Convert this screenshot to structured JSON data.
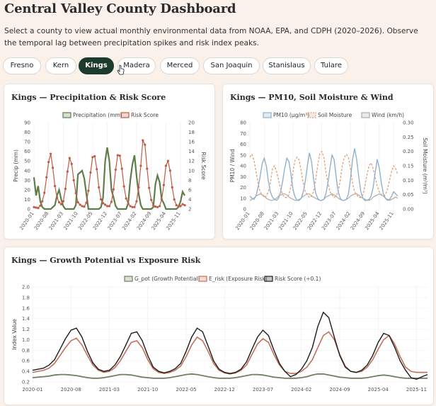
{
  "header": {
    "title": "Central Valley County Dashboard",
    "description": "Select a county to view actual monthly environmental data from NOAA, EPA, and CDPH (2020–2026). Observe the temporal lag between precipitation spikes and risk index peaks."
  },
  "counties": [
    "Fresno",
    "Kern",
    "Kings",
    "Madera",
    "Merced",
    "San Joaquin",
    "Stanislaus",
    "Tulare"
  ],
  "selected_county": "Kings",
  "colors": {
    "precip": "#5e7d4a",
    "risk": "#bf5b45",
    "pm10": "#8fb1cf",
    "soil": "#e2a07a",
    "wind": "#b3aba7",
    "gpot": "#6f7f62",
    "erisk": "#c2705c",
    "riskscore": "#1c1c1c",
    "active_tab": "#1d3b2c",
    "background": "#faf1ea"
  },
  "chart_data": [
    {
      "type": "line",
      "title": "Kings — Precipitation & Risk Score",
      "ylabel": "Precip (mm)",
      "y2label": "Risk Score",
      "ylim": [
        0,
        90
      ],
      "yticks": [
        0,
        10,
        20,
        30,
        40,
        50,
        60,
        70,
        80,
        90
      ],
      "y2lim": [
        2,
        20
      ],
      "y2ticks": [
        2,
        4,
        6,
        8,
        10,
        12,
        14,
        16,
        18,
        20
      ],
      "x_tick_labels": [
        "2020-01",
        "2020-08",
        "2021-03",
        "2021-10",
        "2022-05",
        "2022-12",
        "2023-07",
        "2024-02",
        "2024-09",
        "2025-04",
        "2025-11"
      ],
      "legend": "top",
      "series": [
        {
          "name": "Precipitation (mm)",
          "axis": "left",
          "values": [
            33,
            14,
            24,
            8,
            2,
            0,
            0,
            0,
            0,
            2,
            4,
            14,
            20,
            10,
            3,
            0,
            0,
            0,
            0,
            0,
            4,
            36,
            38,
            40,
            32,
            16,
            0,
            0,
            0,
            0,
            0,
            0,
            2,
            12,
            50,
            64,
            50,
            20,
            12,
            3,
            0,
            0,
            0,
            0,
            0,
            6,
            30,
            46,
            56,
            34,
            16,
            4,
            0,
            0,
            0,
            0,
            0,
            2,
            26,
            35,
            28,
            10,
            6,
            0,
            0,
            0,
            0,
            0,
            0,
            2,
            8,
            18,
            14
          ]
        },
        {
          "name": "Risk Score",
          "axis": "right",
          "values": [
            2.4,
            2.3,
            2.2,
            2.7,
            3.6,
            5.4,
            8.6,
            11.8,
            13.5,
            10.6,
            6.8,
            4.4,
            3.4,
            3.0,
            3.6,
            6.2,
            9.8,
            12.6,
            11.4,
            8.0,
            5.3,
            3.4,
            2.9,
            2.6,
            2.5,
            3.3,
            5.8,
            9.6,
            12.8,
            13.0,
            10.3,
            6.5,
            4.0,
            3.2,
            2.9,
            2.6,
            2.6,
            3.5,
            6.1,
            10.2,
            13.2,
            13.1,
            10.4,
            6.7,
            4.2,
            3.1,
            2.6,
            2.4,
            2.4,
            3.6,
            6.5,
            11.0,
            16.3,
            15.4,
            10.4,
            6.4,
            3.9,
            2.8,
            2.5,
            2.4,
            2.6,
            4.0,
            7.0,
            11.0,
            12.0,
            10.0,
            6.5,
            4.0,
            2.8,
            2.5,
            2.6,
            3.0,
            2.8
          ]
        }
      ]
    },
    {
      "type": "line",
      "title": "Kings — PM10, Soil Moisture & Wind",
      "ylabel": "PM10 / Wind",
      "y2label": "Soil Moisture (m³/m³)",
      "ylim": [
        0,
        80
      ],
      "yticks": [
        0,
        10,
        20,
        30,
        40,
        50,
        60,
        70,
        80
      ],
      "y2lim": [
        0,
        0.3
      ],
      "y2ticks": [
        "0.00",
        "0.05",
        "0.10",
        "0.15",
        "0.20",
        "0.25",
        "0.30"
      ],
      "x_tick_labels": [
        "2020-01",
        "2020-08",
        "2021-03",
        "2021-10",
        "2022-05",
        "2022-12",
        "2023-07",
        "2024-02",
        "2024-09",
        "2025-04",
        "2025-11"
      ],
      "legend": "top",
      "series": [
        {
          "name": "PM10 (µg/m³)",
          "axis": "left",
          "values": [
            12,
            10,
            9,
            12,
            20,
            30,
            42,
            47,
            40,
            26,
            16,
            11,
            9,
            8,
            10,
            16,
            26,
            38,
            47,
            44,
            32,
            18,
            11,
            8,
            8,
            10,
            16,
            26,
            40,
            52,
            44,
            28,
            15,
            10,
            8,
            8,
            9,
            14,
            24,
            38,
            50,
            46,
            30,
            16,
            10,
            8,
            8,
            9,
            14,
            28,
            46,
            56,
            46,
            30,
            16,
            10,
            8,
            8,
            9,
            12,
            20,
            34,
            46,
            38,
            24,
            14,
            10,
            8,
            9,
            12,
            16,
            14,
            12
          ]
        },
        {
          "name": "Soil Moisture",
          "axis": "right",
          "values": [
            0.18,
            0.19,
            0.17,
            0.13,
            0.09,
            0.06,
            0.05,
            0.04,
            0.045,
            0.06,
            0.09,
            0.14,
            0.15,
            0.13,
            0.1,
            0.07,
            0.05,
            0.04,
            0.04,
            0.05,
            0.08,
            0.13,
            0.17,
            0.18,
            0.17,
            0.13,
            0.09,
            0.06,
            0.05,
            0.04,
            0.045,
            0.06,
            0.1,
            0.15,
            0.19,
            0.2,
            0.18,
            0.13,
            0.09,
            0.06,
            0.05,
            0.04,
            0.045,
            0.06,
            0.1,
            0.15,
            0.18,
            0.19,
            0.18,
            0.14,
            0.09,
            0.06,
            0.05,
            0.04,
            0.04,
            0.05,
            0.08,
            0.12,
            0.15,
            0.16,
            0.14,
            0.11,
            0.08,
            0.06,
            0.05,
            0.045,
            0.05,
            0.07,
            0.1,
            0.13,
            0.15,
            0.14,
            0.12
          ]
        },
        {
          "name": "Wind (km/h)",
          "axis": "left",
          "values": [
            8,
            9,
            10,
            12,
            13,
            14,
            13,
            12,
            10,
            9,
            8,
            8,
            9,
            10,
            12,
            13,
            14,
            14,
            13,
            11,
            10,
            9,
            8,
            8,
            9,
            10,
            12,
            13,
            14,
            14,
            12,
            11,
            10,
            9,
            8,
            8,
            9,
            11,
            12,
            13,
            14,
            13,
            12,
            10,
            9,
            8,
            8,
            9,
            10,
            12,
            13,
            14,
            14,
            13,
            11,
            10,
            9,
            8,
            8,
            9,
            11,
            12,
            13,
            14,
            13,
            12,
            10,
            9,
            8,
            9,
            10,
            11,
            10
          ]
        }
      ]
    },
    {
      "type": "line",
      "title": "Kings — Growth Potential vs Exposure Risk",
      "ylabel": "Index Value",
      "ylim": [
        0.2,
        2.0
      ],
      "yticks": [
        "0.2",
        "0.4",
        "0.6",
        "0.8",
        "1.0",
        "1.2",
        "1.4",
        "1.6",
        "1.8",
        "2.0"
      ],
      "x_tick_labels": [
        "2020-01",
        "2020-08",
        "2021-03",
        "2021-10",
        "2022-05",
        "2022-12",
        "2023-07",
        "2024-02",
        "2024-09",
        "2025-04",
        "2025-11"
      ],
      "legend": "top",
      "series": [
        {
          "name": "G_pot (Growth Potential)",
          "values": [
            0.28,
            0.29,
            0.3,
            0.31,
            0.33,
            0.34,
            0.34,
            0.33,
            0.32,
            0.3,
            0.28,
            0.27,
            0.27,
            0.28,
            0.3,
            0.32,
            0.34,
            0.34,
            0.33,
            0.31,
            0.29,
            0.28,
            0.27,
            0.27,
            0.27,
            0.28,
            0.3,
            0.32,
            0.34,
            0.35,
            0.34,
            0.32,
            0.3,
            0.28,
            0.27,
            0.27,
            0.27,
            0.28,
            0.3,
            0.32,
            0.34,
            0.34,
            0.33,
            0.31,
            0.29,
            0.28,
            0.27,
            0.27,
            0.27,
            0.28,
            0.3,
            0.33,
            0.35,
            0.35,
            0.33,
            0.31,
            0.29,
            0.28,
            0.27,
            0.27,
            0.27,
            0.28,
            0.3,
            0.32,
            0.33,
            0.32,
            0.3,
            0.28,
            0.27,
            0.27,
            0.27,
            0.27,
            0.27
          ]
        },
        {
          "name": "E_risk (Exposure Risk)",
          "values": [
            0.38,
            0.4,
            0.42,
            0.46,
            0.55,
            0.7,
            0.85,
            0.98,
            1.03,
            0.9,
            0.7,
            0.52,
            0.42,
            0.38,
            0.4,
            0.47,
            0.6,
            0.78,
            0.95,
            0.98,
            0.85,
            0.62,
            0.45,
            0.38,
            0.36,
            0.38,
            0.42,
            0.5,
            0.68,
            0.9,
            1.05,
            0.98,
            0.78,
            0.55,
            0.42,
            0.37,
            0.35,
            0.37,
            0.42,
            0.52,
            0.72,
            0.92,
            1.02,
            0.95,
            0.72,
            0.52,
            0.4,
            0.36,
            0.36,
            0.4,
            0.48,
            0.62,
            0.85,
            1.08,
            1.15,
            1.0,
            0.72,
            0.5,
            0.4,
            0.38,
            0.4,
            0.48,
            0.62,
            0.82,
            1.0,
            1.08,
            0.92,
            0.68,
            0.48,
            0.4,
            0.38,
            0.38,
            0.38
          ]
        },
        {
          "name": "Risk Score (÷0.1)",
          "values": [
            0.42,
            0.44,
            0.46,
            0.52,
            0.62,
            0.82,
            1.02,
            1.18,
            1.22,
            1.05,
            0.78,
            0.56,
            0.44,
            0.4,
            0.42,
            0.52,
            0.68,
            0.9,
            1.12,
            1.15,
            0.98,
            0.7,
            0.48,
            0.4,
            0.37,
            0.4,
            0.45,
            0.55,
            0.78,
            1.05,
            1.22,
            1.15,
            0.88,
            0.6,
            0.44,
            0.38,
            0.36,
            0.38,
            0.44,
            0.58,
            0.82,
            1.05,
            1.18,
            1.08,
            0.8,
            0.55,
            0.4,
            0.3,
            0.34,
            0.44,
            0.6,
            0.85,
            1.25,
            1.52,
            1.42,
            1.05,
            0.7,
            0.48,
            0.4,
            0.38,
            0.42,
            0.52,
            0.7,
            0.95,
            1.12,
            1.08,
            0.86,
            0.6,
            0.42,
            0.28,
            0.25,
            0.3,
            0.34
          ]
        }
      ]
    }
  ]
}
